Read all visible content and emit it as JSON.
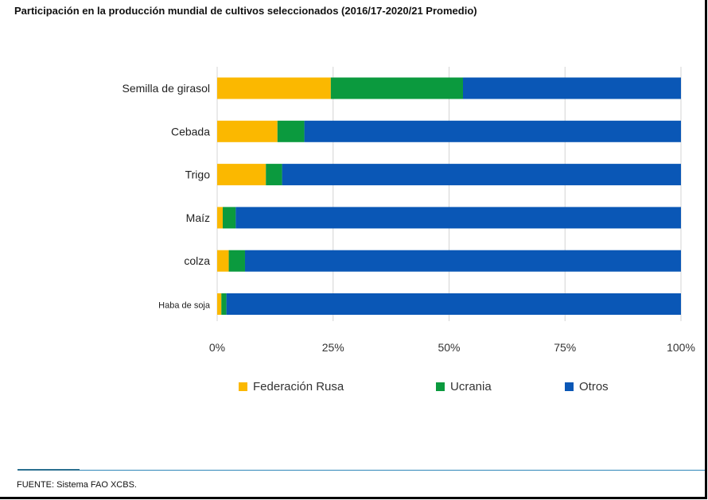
{
  "header": {
    "title": "Participación en la producción mundial de cultivos seleccionados (2016/17-2020/21 Promedio)"
  },
  "footer": {
    "source": "FUENTE: Sistema FAO XCBS."
  },
  "chart_data": {
    "type": "bar",
    "orientation": "horizontal",
    "stacked": true,
    "categories": [
      "Semilla de girasol",
      "Cebada",
      "Trigo",
      "Maíz",
      "colza",
      "Haba de soja"
    ],
    "series": [
      {
        "name": "Federación Rusa",
        "color": "#fbb800",
        "values": [
          24.5,
          13.0,
          10.5,
          1.2,
          2.5,
          0.9
        ]
      },
      {
        "name": "Ucrania",
        "color": "#0b9a3e",
        "values": [
          28.5,
          5.8,
          3.5,
          2.8,
          3.5,
          1.1
        ]
      },
      {
        "name": "Otros",
        "color": "#0a57b6",
        "values": [
          47.0,
          81.2,
          86.0,
          96.0,
          94.0,
          98.0
        ]
      }
    ],
    "xlim": [
      0,
      100
    ],
    "xticks": [
      "0%",
      "25%",
      "50%",
      "75%",
      "100%"
    ],
    "grid": true,
    "legend_position": "bottom"
  }
}
